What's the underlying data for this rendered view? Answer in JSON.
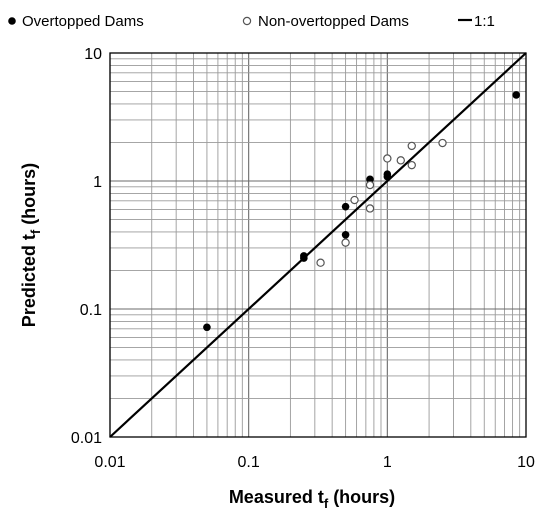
{
  "chart_data": {
    "type": "scatter",
    "xscale": "log",
    "yscale": "log",
    "xlim": [
      0.01,
      10
    ],
    "ylim": [
      0.01,
      10
    ],
    "grid": true,
    "legend_position": "top",
    "xlabel": {
      "main": "Measured t",
      "sub": "f",
      "unit": " (hours)"
    },
    "ylabel": {
      "main": "Predicted t",
      "sub": "f",
      "unit": " (hours)"
    },
    "x_ticks": [
      "0.01",
      "0.1",
      "1",
      "10"
    ],
    "y_ticks": [
      "0.01",
      "0.1",
      "1",
      "10"
    ],
    "x_tick_values": [
      0.01,
      0.1,
      1,
      10
    ],
    "y_tick_values": [
      0.01,
      0.1,
      1,
      10
    ],
    "series": [
      {
        "name": "Overtopped Dams",
        "marker": "filled-circle",
        "color": "#000000",
        "points": [
          {
            "x": 0.05,
            "y": 0.072
          },
          {
            "x": 0.25,
            "y": 0.25
          },
          {
            "x": 0.25,
            "y": 0.26
          },
          {
            "x": 0.5,
            "y": 0.38
          },
          {
            "x": 0.5,
            "y": 0.63
          },
          {
            "x": 0.75,
            "y": 1.03
          },
          {
            "x": 1.0,
            "y": 1.08
          },
          {
            "x": 1.0,
            "y": 1.13
          },
          {
            "x": 8.5,
            "y": 4.7
          }
        ]
      },
      {
        "name": "Non-overtopped Dams",
        "marker": "open-circle",
        "color": "#555555",
        "points": [
          {
            "x": 0.33,
            "y": 0.23
          },
          {
            "x": 0.5,
            "y": 0.33
          },
          {
            "x": 0.58,
            "y": 0.71
          },
          {
            "x": 0.75,
            "y": 0.61
          },
          {
            "x": 0.75,
            "y": 0.93
          },
          {
            "x": 1.0,
            "y": 1.5
          },
          {
            "x": 1.25,
            "y": 1.45
          },
          {
            "x": 1.5,
            "y": 1.33
          },
          {
            "x": 1.5,
            "y": 1.88
          },
          {
            "x": 2.5,
            "y": 1.98
          }
        ]
      },
      {
        "name": "1:1",
        "marker": "line",
        "color": "#000000",
        "points": [
          {
            "x": 0.01,
            "y": 0.01
          },
          {
            "x": 10,
            "y": 10
          }
        ]
      }
    ]
  }
}
